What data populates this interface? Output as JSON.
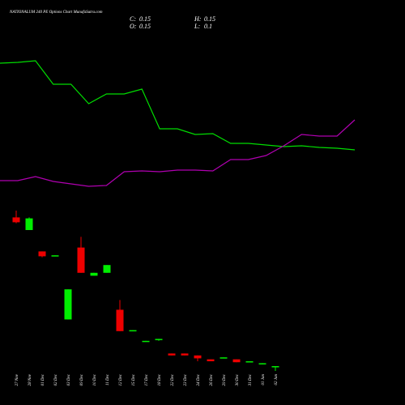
{
  "chart_data": {
    "type": "candlestick",
    "title": "NATIONALUM 240 PE Options Chart MunafaSutra.com",
    "ohlc_info": [
      {
        "label": "C:",
        "value": 0.15
      },
      {
        "label": "H:",
        "value": 0.15
      },
      {
        "label": "O:",
        "value": 0.15
      },
      {
        "label": "L:",
        "value": 0.1
      }
    ],
    "categories": [
      "27 Nov",
      "28 Nov",
      "01 Dec",
      "02 Dec",
      "03 Dec",
      "09 Dec",
      "10 Dec",
      "11 Dec",
      "12 Dec",
      "15 Dec",
      "17 Dec",
      "18 Dec",
      "22 Dec",
      "23 Dec",
      "24 Dec",
      "26 Dec",
      "29 Dec",
      "30 Dec",
      "31 Dec",
      "01 Jan",
      "02 Jan"
    ],
    "open": [
      1.68,
      1.55,
      1.33,
      1.28,
      0.63,
      1.37,
      1.08,
      1.11,
      0.73,
      0.51,
      0.4,
      0.42,
      0.28,
      0.28,
      0.26,
      0.22,
      0.23,
      0.22,
      0.19,
      0.17,
      0.15
    ],
    "high": [
      1.75,
      1.68,
      1.33,
      1.29,
      0.94,
      1.48,
      1.11,
      1.19,
      0.83,
      0.52,
      0.41,
      0.43,
      0.28,
      0.28,
      0.26,
      0.22,
      0.24,
      0.22,
      0.2,
      0.18,
      0.15
    ],
    "low": [
      1.62,
      1.55,
      1.27,
      1.28,
      0.63,
      1.11,
      1.08,
      1.11,
      0.51,
      0.51,
      0.4,
      0.41,
      0.26,
      0.26,
      0.2,
      0.2,
      0.23,
      0.19,
      0.19,
      0.17,
      0.1
    ],
    "close": [
      1.63,
      1.67,
      1.28,
      1.29,
      0.94,
      1.11,
      1.11,
      1.19,
      0.51,
      0.52,
      0.41,
      0.43,
      0.26,
      0.26,
      0.23,
      0.2,
      0.24,
      0.19,
      0.2,
      0.18,
      0.15
    ],
    "up_color": "#00ee00",
    "down_color": "#ee0000",
    "ylim": [
      0,
      1.8
    ],
    "lines": [
      {
        "color": "#00dd00",
        "values": [
          172,
          173,
          175,
          146,
          146,
          122,
          134,
          134,
          140,
          91,
          91,
          84,
          85,
          73,
          73,
          71,
          69,
          70,
          68,
          67,
          65
        ]
      },
      {
        "color": "#b000b0",
        "values": [
          27,
          27,
          32,
          26,
          23,
          20,
          21,
          38,
          39,
          38,
          40,
          40,
          39,
          53,
          53,
          58,
          70,
          84,
          82,
          82,
          102
        ]
      }
    ],
    "line_ylim": [
      0,
      200
    ]
  }
}
